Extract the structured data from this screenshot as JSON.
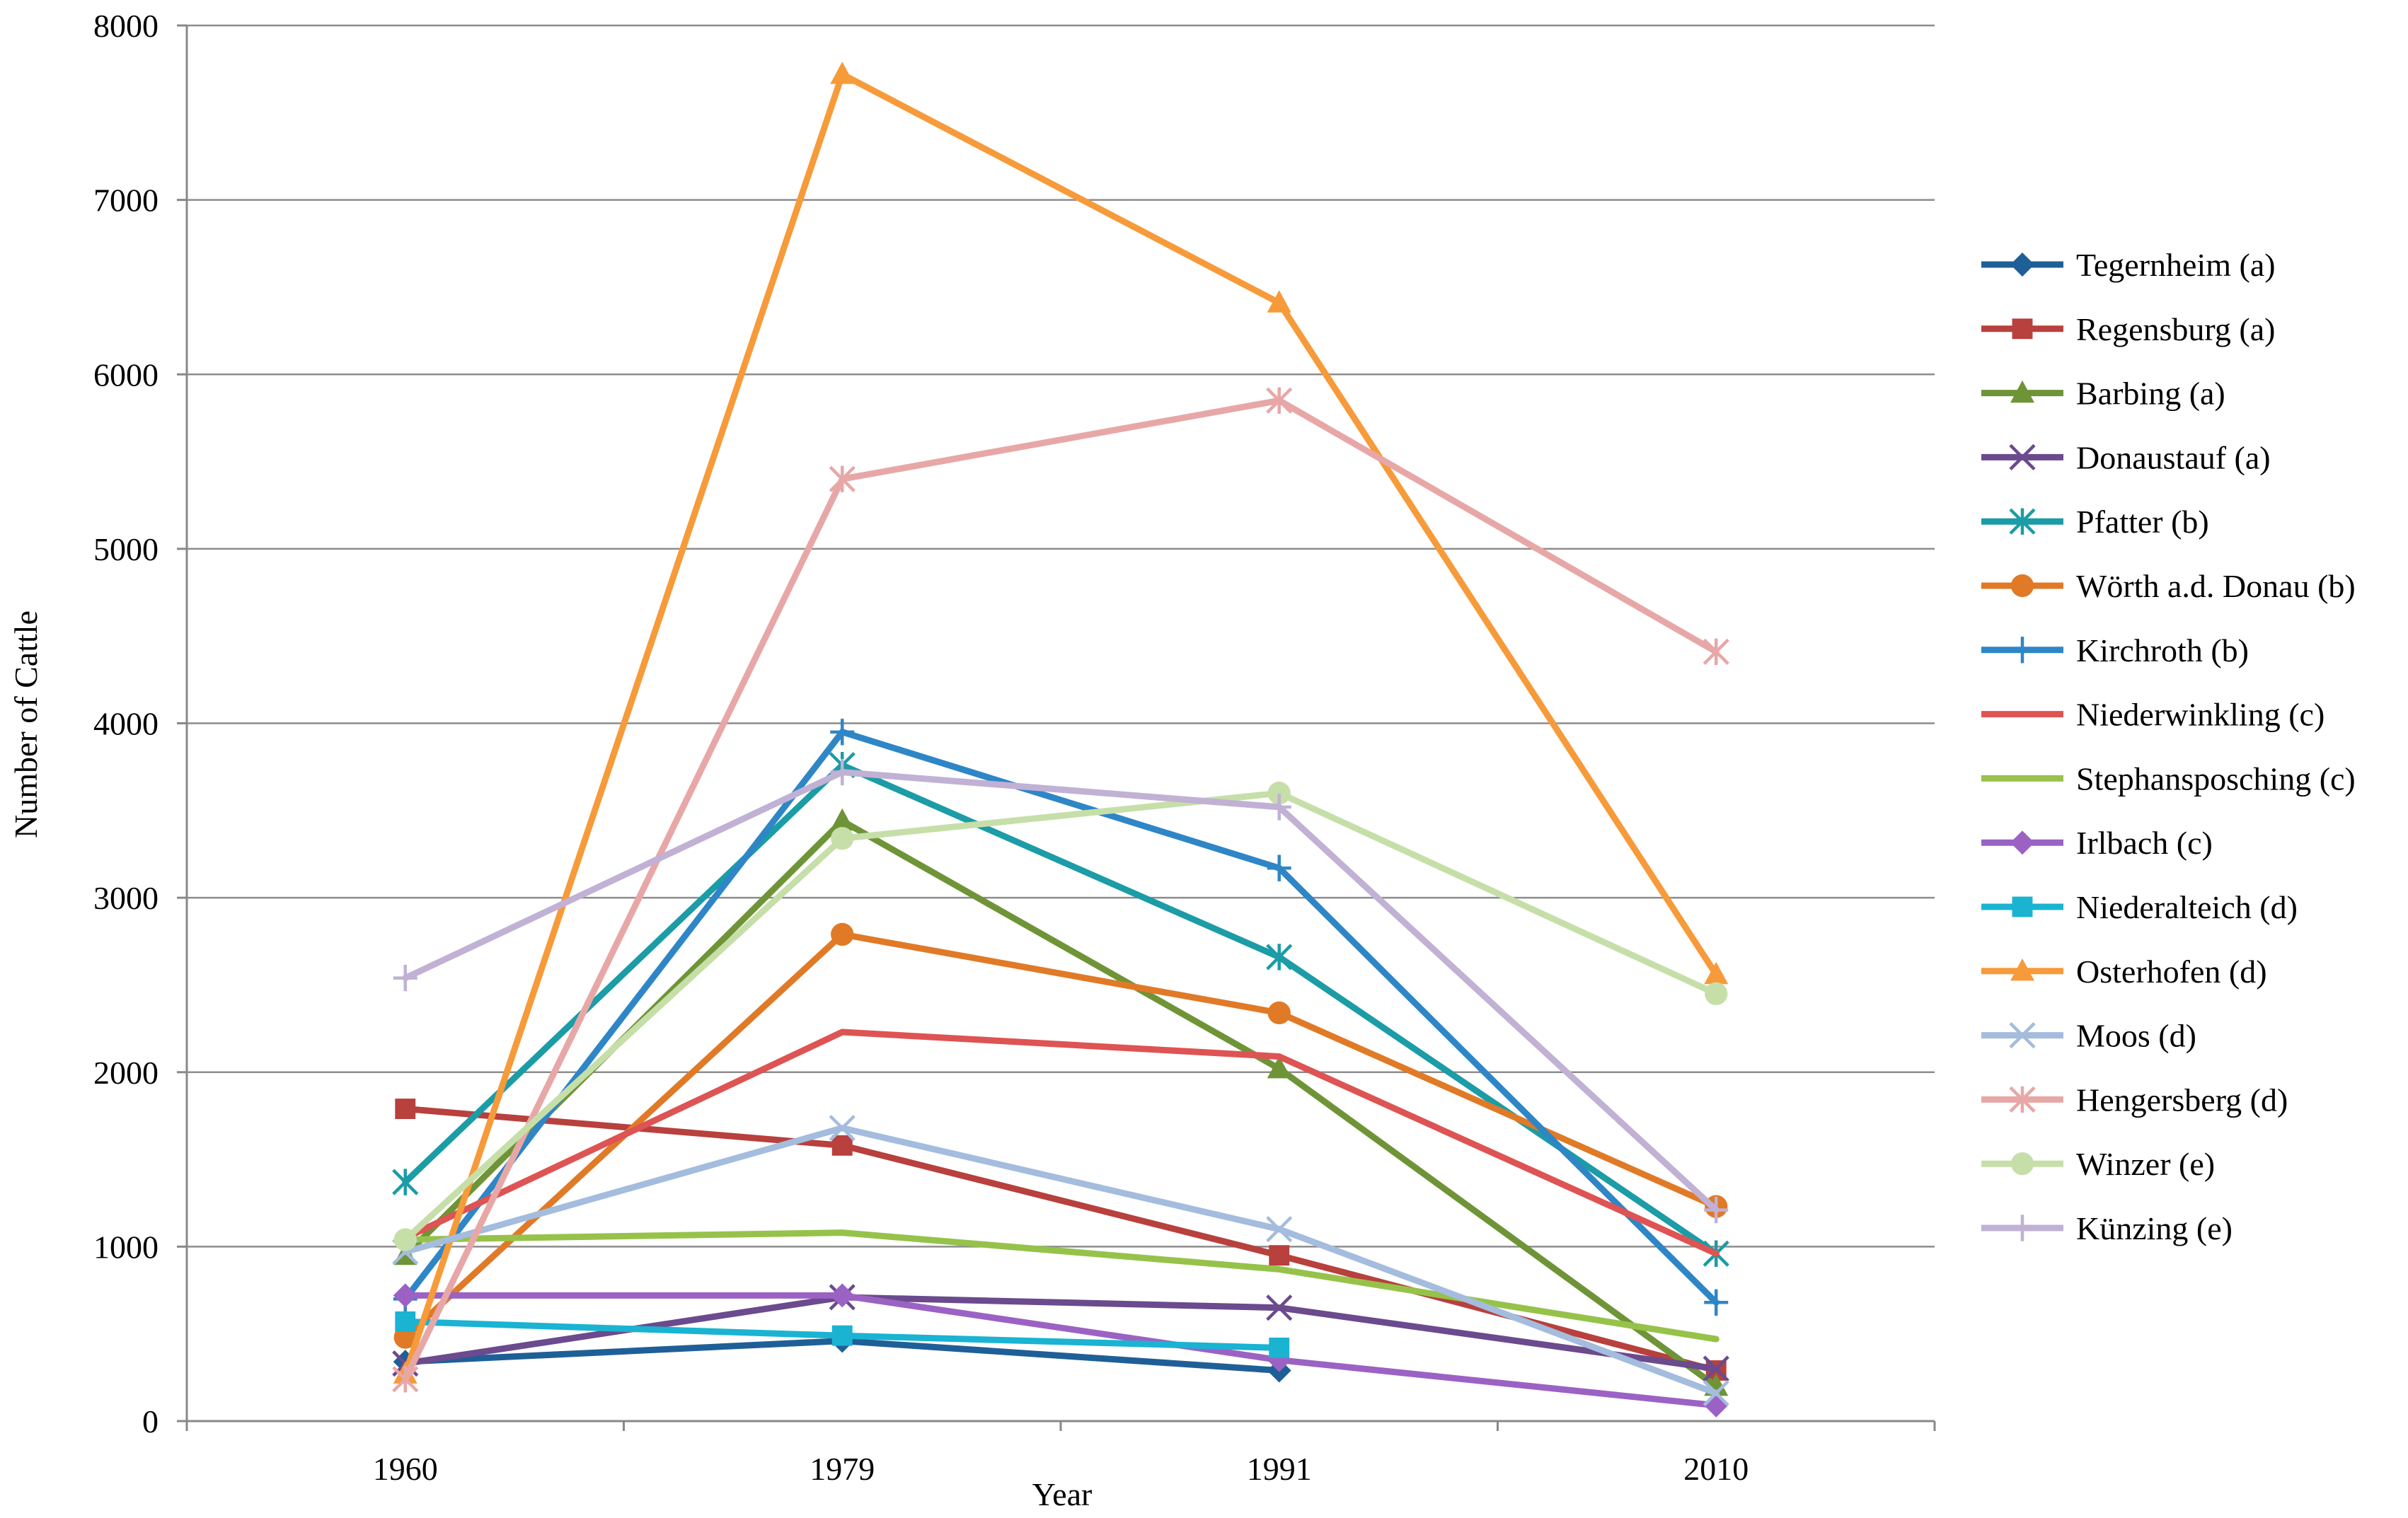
{
  "chart_data": {
    "type": "line",
    "title": "",
    "xlabel": "Year",
    "ylabel": "Number of Cattle",
    "categories": [
      "1960",
      "1979",
      "1991",
      "2010"
    ],
    "ylim": [
      0,
      8000
    ],
    "yticks": [
      0,
      1000,
      2000,
      3000,
      4000,
      5000,
      6000,
      7000,
      8000
    ],
    "grid": "horizontal",
    "legend_position": "right",
    "series": [
      {
        "name": "Tegernheim (a)",
        "color": "#1f5f97",
        "marker": "diamond",
        "values": [
          340,
          460,
          290,
          null
        ]
      },
      {
        "name": "Regensburg (a)",
        "color": "#b8403d",
        "marker": "square",
        "values": [
          1790,
          1580,
          950,
          290
        ]
      },
      {
        "name": "Barbing (a)",
        "color": "#6f9437",
        "marker": "triangle",
        "values": [
          950,
          3440,
          2020,
          200
        ]
      },
      {
        "name": "Donaustauf (a)",
        "color": "#6b4a8e",
        "marker": "x",
        "values": [
          330,
          710,
          650,
          300
        ]
      },
      {
        "name": "Pfatter (b)",
        "color": "#1b9ca6",
        "marker": "asterisk",
        "values": [
          1370,
          3760,
          2660,
          960
        ]
      },
      {
        "name": "Wörth a.d. Donau (b)",
        "color": "#e07a27",
        "marker": "circle",
        "values": [
          480,
          2790,
          2340,
          1230
        ]
      },
      {
        "name": "Kirchroth (b)",
        "color": "#2e86c7",
        "marker": "plus",
        "values": [
          700,
          3950,
          3170,
          680
        ]
      },
      {
        "name": "Niederwinkling (c)",
        "color": "#de5353",
        "marker": "none",
        "values": [
          1050,
          2230,
          2090,
          960
        ]
      },
      {
        "name": "Stephansposching (c)",
        "color": "#96c24a",
        "marker": "none",
        "values": [
          1040,
          1080,
          870,
          470
        ]
      },
      {
        "name": "Irlbach (c)",
        "color": "#9b62c4",
        "marker": "diamond",
        "values": [
          720,
          720,
          350,
          90
        ]
      },
      {
        "name": "Niederalteich (d)",
        "color": "#1ab3d2",
        "marker": "square",
        "values": [
          570,
          490,
          420,
          null
        ]
      },
      {
        "name": "Osterhofen (d)",
        "color": "#f79a3a",
        "marker": "triangle",
        "values": [
          270,
          7720,
          6410,
          2560
        ]
      },
      {
        "name": "Moos (d)",
        "color": "#a4bcdd",
        "marker": "x",
        "values": [
          970,
          1680,
          1100,
          160
        ]
      },
      {
        "name": "Hengersberg (d)",
        "color": "#e8a7a7",
        "marker": "asterisk",
        "values": [
          240,
          5400,
          5850,
          4410
        ]
      },
      {
        "name": "Winzer (e)",
        "color": "#c6dfa9",
        "marker": "circle",
        "values": [
          1040,
          3340,
          3600,
          2450
        ]
      },
      {
        "name": "Künzing (e)",
        "color": "#c1b1d4",
        "marker": "plus",
        "values": [
          2540,
          3720,
          3520,
          1210
        ]
      }
    ]
  }
}
